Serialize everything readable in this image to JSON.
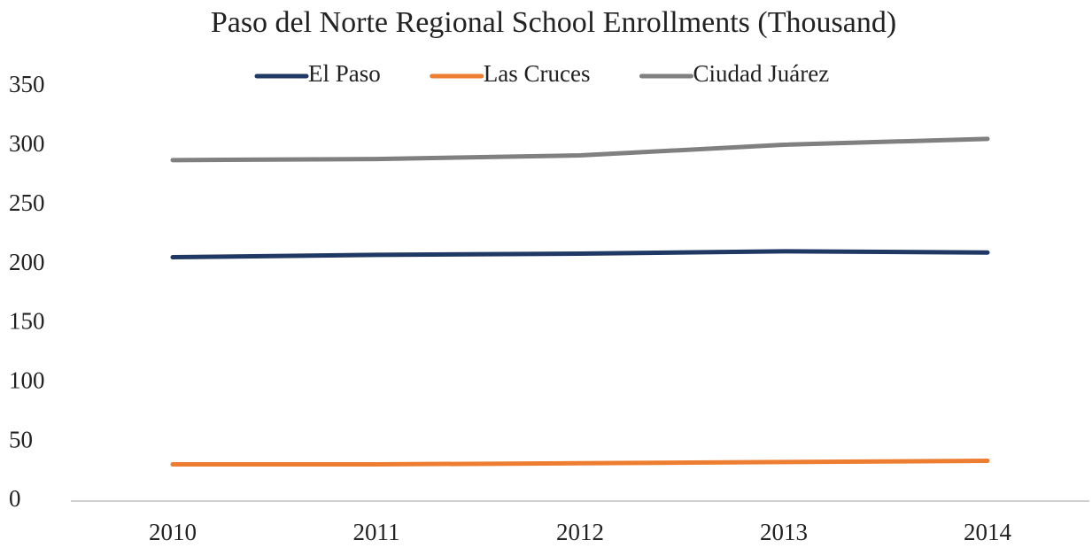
{
  "chart_data": {
    "type": "line",
    "title": "Paso del Norte Regional School Enrollments (Thousand)",
    "categories": [
      "2010",
      "2011",
      "2012",
      "2013",
      "2014"
    ],
    "series": [
      {
        "name": "El Paso",
        "color": "#203864",
        "values": [
          206,
          208,
          209,
          211,
          210
        ]
      },
      {
        "name": "Las Cruces",
        "color": "#ed7d31",
        "values": [
          31,
          31,
          32,
          33,
          34
        ]
      },
      {
        "name": "Ciudad Juárez",
        "color": "#808080",
        "values": [
          288,
          289,
          292,
          301,
          306
        ]
      }
    ],
    "ylim": [
      0,
      350
    ],
    "yticks": [
      0,
      50,
      100,
      150,
      200,
      250,
      300,
      350
    ],
    "grid": false,
    "legend": "top"
  }
}
